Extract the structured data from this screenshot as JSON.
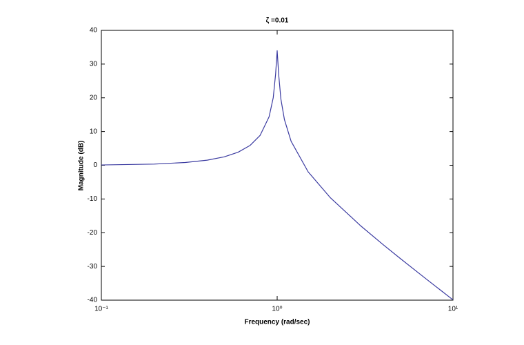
{
  "chart_data": {
    "type": "line",
    "title": "ζ =0.01",
    "x_label": "Frequency  (rad/sec)",
    "y_label": "Magnitude (dB)",
    "x_scale": "log",
    "x": [
      0.1,
      0.2,
      0.3,
      0.4,
      0.5,
      0.6,
      0.7,
      0.8,
      0.9,
      0.95,
      0.98,
      1.0,
      1.02,
      1.05,
      1.1,
      1.2,
      1.5,
      2,
      3,
      4,
      5,
      7,
      10
    ],
    "series": [
      {
        "name": "Magnitude",
        "color": "#3a3aa0",
        "values": [
          0.09,
          0.35,
          0.82,
          1.51,
          2.5,
          3.88,
          5.85,
          8.87,
          14.39,
          20.06,
          27.1,
          33.98,
          26.89,
          19.61,
          13.51,
          7.13,
          -1.94,
          -9.54,
          -18.06,
          -23.52,
          -27.6,
          -33.62,
          -39.91
        ]
      }
    ],
    "xlim": [
      0.1,
      10
    ],
    "xticks": [
      {
        "value": 0.1,
        "label": "10⁻¹"
      },
      {
        "value": 1,
        "label": "10⁰"
      },
      {
        "value": 10,
        "label": "10¹"
      }
    ],
    "ylim": [
      -40,
      40
    ],
    "yticks": [
      -40,
      -30,
      -20,
      -10,
      0,
      10,
      20,
      30,
      40
    ],
    "grid": false
  }
}
